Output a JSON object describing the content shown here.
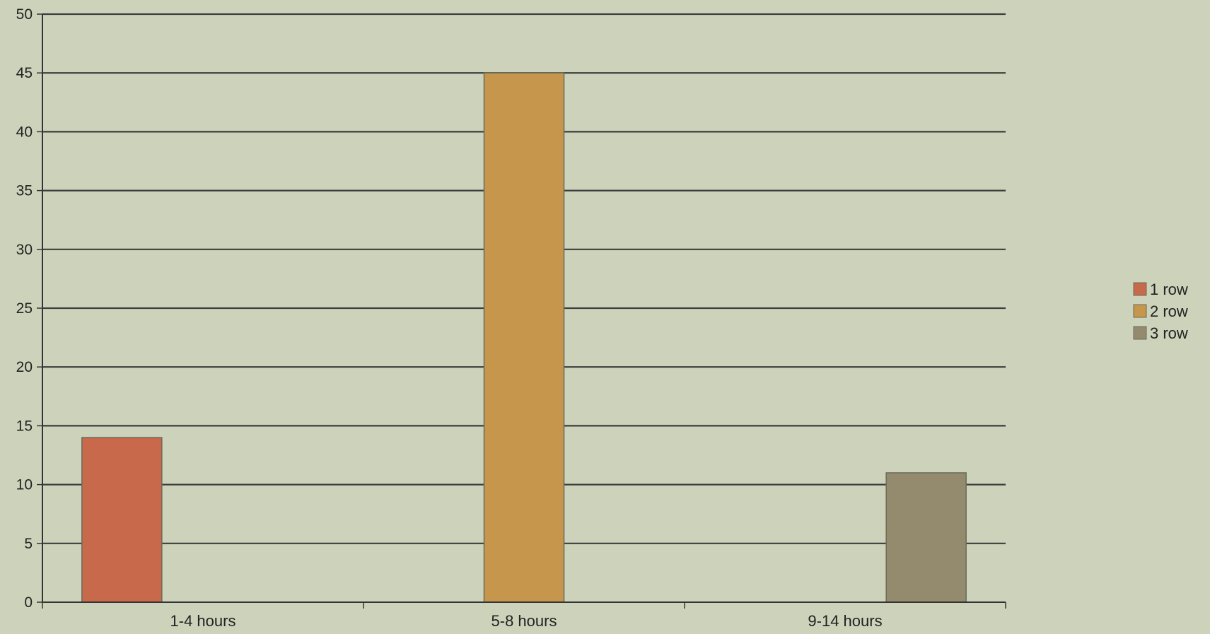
{
  "chart_data": {
    "type": "bar",
    "title": "",
    "xlabel": "",
    "ylabel": "",
    "categories": [
      "1-4 hours",
      "5-8 hours",
      "9-14 hours"
    ],
    "series": [
      {
        "name": "1 row",
        "color": "#c8694c",
        "values": [
          14,
          0,
          0
        ]
      },
      {
        "name": "2 row",
        "color": "#c5964c",
        "values": [
          0,
          45,
          0
        ]
      },
      {
        "name": "3 row",
        "color": "#948b6e",
        "values": [
          0,
          0,
          11
        ]
      }
    ],
    "ylim": [
      0,
      50
    ],
    "yticks": [
      0,
      5,
      10,
      15,
      20,
      25,
      30,
      35,
      40,
      45,
      50
    ],
    "grid": true,
    "legend_position": "right",
    "background_color": "#cdd3bb",
    "grid_color": "#3d3d3d"
  }
}
